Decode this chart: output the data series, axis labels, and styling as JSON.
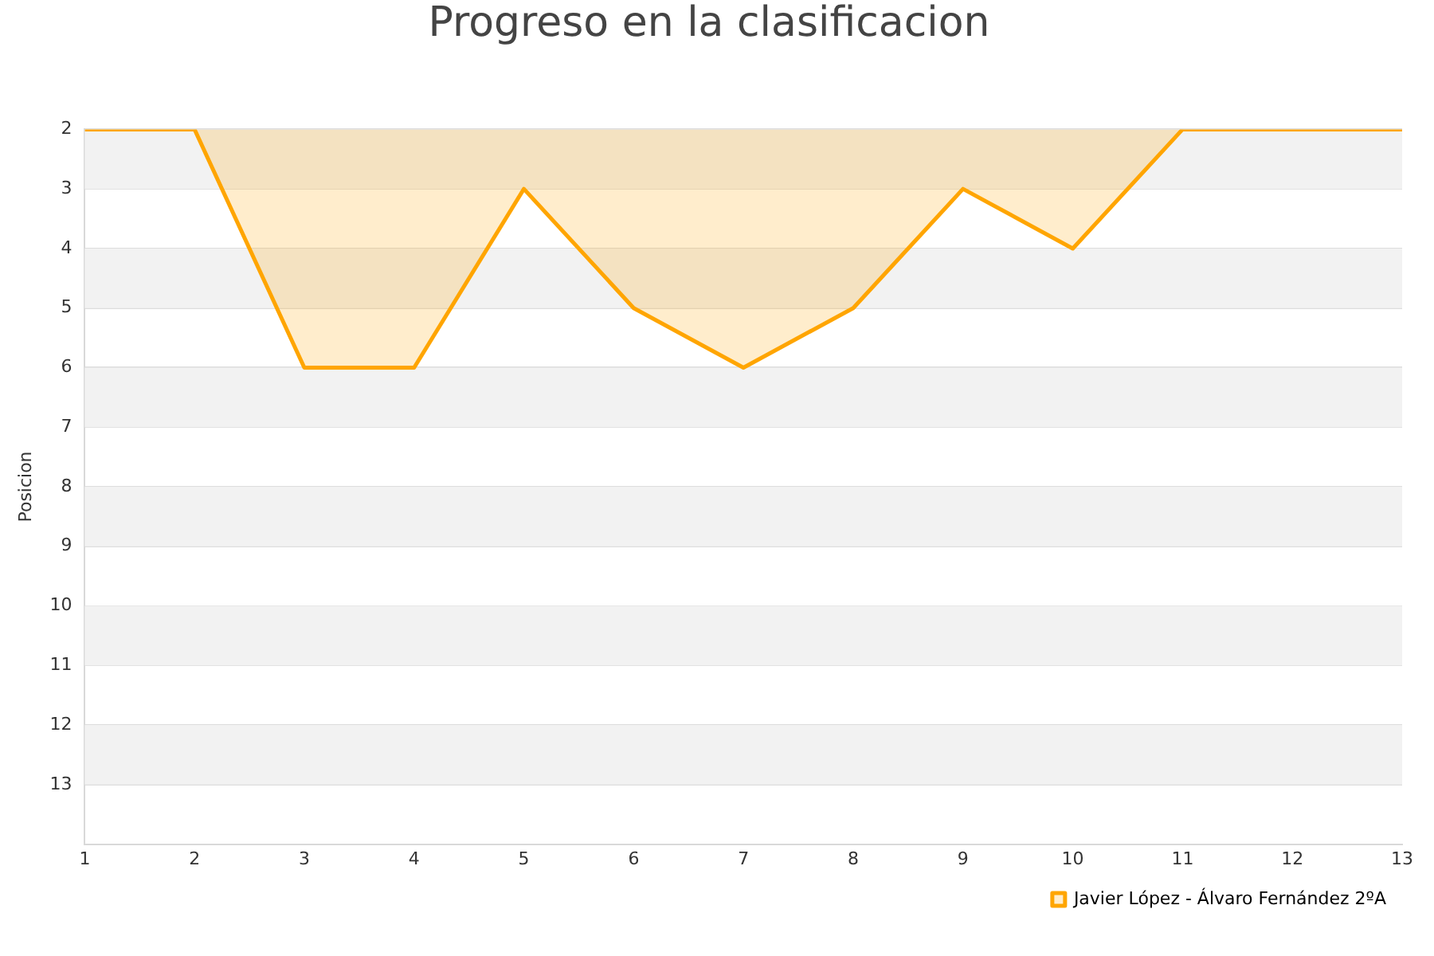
{
  "chart_data": {
    "type": "area",
    "title": "Progreso en la clasificacion",
    "ylabel": "Posicion",
    "x": [
      1,
      2,
      3,
      4,
      5,
      6,
      7,
      8,
      9,
      10,
      11,
      12,
      13
    ],
    "series": [
      {
        "name": "Javier López - Álvaro Fernández 2ºA",
        "color": "#ffa500",
        "values": [
          2,
          2,
          6,
          6,
          3,
          5,
          6,
          5,
          3,
          4,
          2,
          2,
          2
        ]
      }
    ],
    "xlim": [
      1,
      13
    ],
    "xticks": [
      1,
      2,
      3,
      4,
      5,
      6,
      7,
      8,
      9,
      10,
      11,
      12,
      13
    ],
    "ylim": [
      14,
      2
    ],
    "yticks": [
      2,
      3,
      4,
      5,
      6,
      7,
      8,
      9,
      10,
      11,
      12,
      13
    ],
    "grid": "y",
    "legend": "bottom right",
    "marker": "none"
  }
}
